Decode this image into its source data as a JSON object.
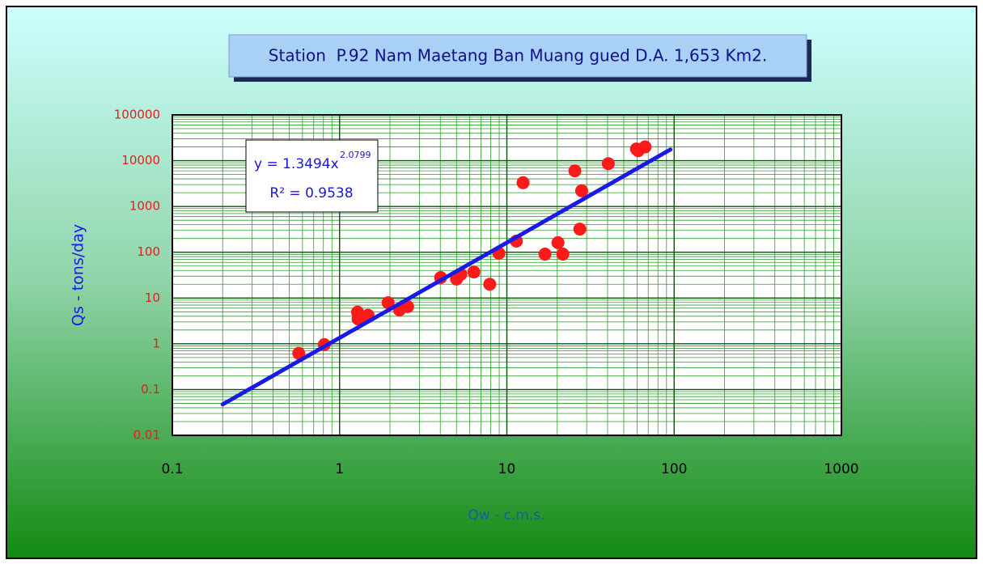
{
  "chart_data": {
    "type": "scatter",
    "title": "Station  P.92 Nam Maetang Ban Muang gued D.A. 1,653 Km2.",
    "x_label": "Qw - c.m.s.",
    "y_label": "Qs - tons/day",
    "x_log": true,
    "y_log": true,
    "grid": true,
    "xlim": [
      0.1,
      1000
    ],
    "ylim": [
      0.01,
      100000
    ],
    "xticks": [
      0.1,
      1,
      10,
      100,
      1000
    ],
    "yticks": [
      0.01,
      0.1,
      1,
      10,
      100,
      1000,
      10000,
      100000
    ],
    "series": [
      {
        "color": "#ff1a1a",
        "x": [
          0.57,
          0.81,
          1.28,
          1.29,
          1.34,
          1.48,
          1.95,
          2.28,
          2.55,
          4.02,
          5.0,
          5.3,
          6.35,
          7.9,
          8.96,
          11.4,
          12.5,
          16.9,
          20.2,
          21.6,
          25.5,
          27.3,
          28,
          40.4,
          59.5,
          61,
          67
        ],
        "values": [
          0.62,
          0.96,
          4.9,
          3.5,
          4.0,
          4.2,
          7.9,
          5.5,
          6.5,
          28,
          26,
          33,
          37,
          20,
          95,
          175,
          3300,
          91,
          162,
          91,
          6000,
          320,
          2200,
          8600,
          18000,
          16500,
          20000
        ]
      }
    ],
    "trendline": {
      "color": "#1a1ae6",
      "a": 1.3494,
      "b": 2.0799,
      "x_range": [
        0.2,
        95
      ],
      "equation": "y = 1.3494x",
      "exponent": "2.0799",
      "r_squared": "R² = 0.9538"
    }
  }
}
